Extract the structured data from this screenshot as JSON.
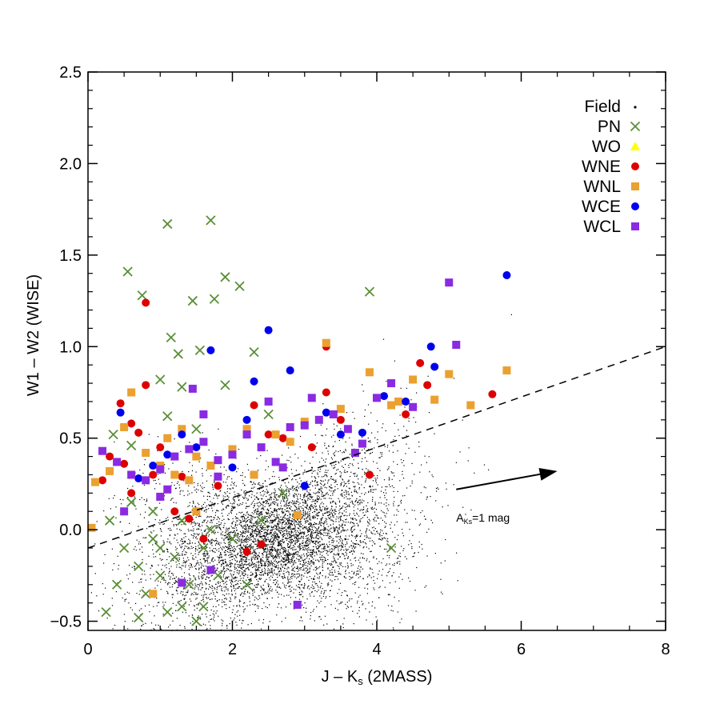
{
  "chart_data": {
    "type": "scatter",
    "xlabel": "J – K",
    "xlabel_sub": "s",
    "xlabel_tail": " (2MASS)",
    "ylabel": "W1 – W2 (WISE)",
    "xlim": [
      0,
      8
    ],
    "ylim": [
      -0.55,
      2.5
    ],
    "x_ticks": [
      "0",
      "2",
      "4",
      "6",
      "8"
    ],
    "y_ticks": [
      "−0.5",
      "0.0",
      "0.5",
      "1.0",
      "1.5",
      "2.0",
      "2.5"
    ],
    "legend_placement": "top-right",
    "field": {
      "name": "Field",
      "color": "#000000",
      "marker": "dot",
      "approx_count": 6000,
      "center": [
        2.6,
        -0.05
      ],
      "spread": [
        0.9,
        0.15
      ]
    },
    "reference_line": {
      "style": "dashed",
      "points": [
        [
          0,
          -0.1
        ],
        [
          8,
          1.0
        ]
      ]
    },
    "extinction_vector": {
      "label": "A",
      "label_sub": "Ks",
      "label_tail": "=1 mag",
      "from": [
        5.1,
        0.22
      ],
      "to": [
        6.5,
        0.32
      ]
    },
    "series": [
      {
        "name": "PN",
        "marker": "x",
        "color": "#5a8f36",
        "points": [
          [
            1.1,
            1.67
          ],
          [
            1.7,
            1.69
          ],
          [
            0.55,
            1.41
          ],
          [
            1.9,
            1.38
          ],
          [
            0.75,
            1.28
          ],
          [
            1.45,
            1.25
          ],
          [
            1.75,
            1.26
          ],
          [
            2.1,
            1.33
          ],
          [
            1.15,
            1.05
          ],
          [
            1.25,
            0.96
          ],
          [
            1.55,
            0.98
          ],
          [
            2.3,
            0.97
          ],
          [
            1.0,
            0.82
          ],
          [
            1.3,
            0.78
          ],
          [
            1.9,
            0.79
          ],
          [
            0.35,
            0.52
          ],
          [
            0.6,
            0.46
          ],
          [
            1.1,
            0.62
          ],
          [
            1.5,
            0.55
          ],
          [
            2.5,
            0.63
          ],
          [
            3.9,
            1.3
          ],
          [
            4.2,
            -0.1
          ],
          [
            0.3,
            0.05
          ],
          [
            0.5,
            -0.1
          ],
          [
            0.7,
            -0.2
          ],
          [
            0.9,
            -0.05
          ],
          [
            1.0,
            -0.25
          ],
          [
            1.2,
            -0.15
          ],
          [
            1.4,
            -0.3
          ],
          [
            1.6,
            -0.1
          ],
          [
            0.8,
            -0.35
          ],
          [
            1.1,
            -0.45
          ],
          [
            1.3,
            -0.42
          ],
          [
            1.5,
            -0.5
          ],
          [
            0.25,
            -0.45
          ],
          [
            1.8,
            -0.25
          ],
          [
            2.0,
            -0.05
          ],
          [
            2.4,
            0.05
          ],
          [
            2.7,
            0.2
          ],
          [
            0.4,
            -0.3
          ],
          [
            0.9,
            0.1
          ],
          [
            1.3,
            0.05
          ],
          [
            1.7,
            0.0
          ],
          [
            0.6,
            0.15
          ],
          [
            1.0,
            -0.1
          ],
          [
            2.2,
            -0.3
          ],
          [
            1.6,
            -0.42
          ],
          [
            0.7,
            -0.48
          ]
        ]
      },
      {
        "name": "WO",
        "marker": "triangle",
        "color": "#ffff00",
        "points": []
      },
      {
        "name": "WNE",
        "marker": "circle",
        "color": "#dd0000",
        "points": [
          [
            0.8,
            1.24
          ],
          [
            0.8,
            0.79
          ],
          [
            0.45,
            0.69
          ],
          [
            0.6,
            0.58
          ],
          [
            0.7,
            0.53
          ],
          [
            1.0,
            0.45
          ],
          [
            0.3,
            0.4
          ],
          [
            0.5,
            0.36
          ],
          [
            0.9,
            0.3
          ],
          [
            1.3,
            0.29
          ],
          [
            2.3,
            0.68
          ],
          [
            2.7,
            0.5
          ],
          [
            3.3,
            1.0
          ],
          [
            3.3,
            0.75
          ],
          [
            3.5,
            0.6
          ],
          [
            4.4,
            0.63
          ],
          [
            4.6,
            0.91
          ],
          [
            4.7,
            0.79
          ],
          [
            5.6,
            0.74
          ],
          [
            2.5,
            0.52
          ],
          [
            0.2,
            0.27
          ],
          [
            1.8,
            0.24
          ],
          [
            1.2,
            0.1
          ],
          [
            2.2,
            -0.12
          ],
          [
            2.4,
            -0.08
          ],
          [
            1.6,
            -0.05
          ],
          [
            3.1,
            0.45
          ],
          [
            3.9,
            0.3
          ],
          [
            0.6,
            0.2
          ],
          [
            1.4,
            0.06
          ]
        ]
      },
      {
        "name": "WNL",
        "marker": "square",
        "color": "#eba030",
        "points": [
          [
            0.1,
            0.26
          ],
          [
            0.05,
            0.01
          ],
          [
            0.5,
            0.56
          ],
          [
            0.6,
            0.75
          ],
          [
            0.8,
            0.42
          ],
          [
            1.1,
            0.5
          ],
          [
            1.3,
            0.55
          ],
          [
            1.5,
            0.4
          ],
          [
            1.7,
            0.35
          ],
          [
            2.0,
            0.44
          ],
          [
            2.2,
            0.55
          ],
          [
            2.6,
            0.52
          ],
          [
            2.8,
            0.48
          ],
          [
            3.0,
            0.59
          ],
          [
            3.3,
            1.02
          ],
          [
            3.5,
            0.66
          ],
          [
            3.9,
            0.86
          ],
          [
            4.2,
            0.68
          ],
          [
            4.3,
            0.7
          ],
          [
            4.5,
            0.82
          ],
          [
            4.8,
            0.71
          ],
          [
            5.0,
            0.85
          ],
          [
            5.3,
            0.68
          ],
          [
            5.8,
            0.87
          ],
          [
            1.0,
            0.35
          ],
          [
            1.2,
            0.3
          ],
          [
            1.4,
            0.27
          ],
          [
            0.3,
            0.32
          ],
          [
            2.9,
            0.08
          ],
          [
            0.9,
            -0.35
          ],
          [
            1.5,
            0.1
          ],
          [
            2.3,
            0.3
          ]
        ]
      },
      {
        "name": "WCE",
        "marker": "circle",
        "color": "#0000ee",
        "points": [
          [
            0.45,
            0.64
          ],
          [
            0.9,
            0.35
          ],
          [
            1.1,
            0.41
          ],
          [
            1.3,
            0.52
          ],
          [
            1.7,
            0.98
          ],
          [
            2.5,
            1.09
          ],
          [
            2.3,
            0.81
          ],
          [
            2.8,
            0.87
          ],
          [
            3.3,
            0.64
          ],
          [
            3.5,
            0.52
          ],
          [
            3.8,
            0.53
          ],
          [
            4.1,
            0.73
          ],
          [
            4.4,
            0.7
          ],
          [
            4.75,
            1.0
          ],
          [
            4.8,
            0.89
          ],
          [
            5.8,
            1.39
          ],
          [
            3.0,
            0.24
          ],
          [
            2.0,
            0.34
          ],
          [
            1.5,
            0.45
          ],
          [
            0.7,
            0.28
          ],
          [
            2.2,
            0.6
          ]
        ]
      },
      {
        "name": "WCL",
        "marker": "square",
        "color": "#8a2be2",
        "points": [
          [
            0.2,
            0.43
          ],
          [
            0.4,
            0.37
          ],
          [
            0.6,
            0.3
          ],
          [
            0.8,
            0.27
          ],
          [
            1.0,
            0.33
          ],
          [
            1.2,
            0.4
          ],
          [
            1.4,
            0.44
          ],
          [
            1.6,
            0.48
          ],
          [
            1.8,
            0.38
          ],
          [
            2.0,
            0.41
          ],
          [
            2.2,
            0.52
          ],
          [
            2.4,
            0.45
          ],
          [
            2.6,
            0.37
          ],
          [
            2.8,
            0.56
          ],
          [
            3.0,
            0.57
          ],
          [
            3.2,
            0.6
          ],
          [
            3.4,
            0.63
          ],
          [
            3.6,
            0.55
          ],
          [
            3.8,
            0.47
          ],
          [
            4.0,
            0.72
          ],
          [
            4.2,
            0.8
          ],
          [
            4.5,
            0.67
          ],
          [
            5.0,
            1.35
          ],
          [
            5.1,
            1.01
          ],
          [
            1.45,
            0.77
          ],
          [
            1.6,
            0.63
          ],
          [
            2.5,
            0.7
          ],
          [
            3.1,
            0.72
          ],
          [
            1.1,
            0.22
          ],
          [
            2.9,
            -0.41
          ],
          [
            1.3,
            -0.29
          ],
          [
            1.7,
            -0.22
          ],
          [
            1.8,
            0.29
          ],
          [
            0.5,
            0.1
          ],
          [
            1.0,
            0.18
          ],
          [
            2.7,
            0.34
          ],
          [
            3.7,
            0.42
          ]
        ]
      }
    ]
  }
}
